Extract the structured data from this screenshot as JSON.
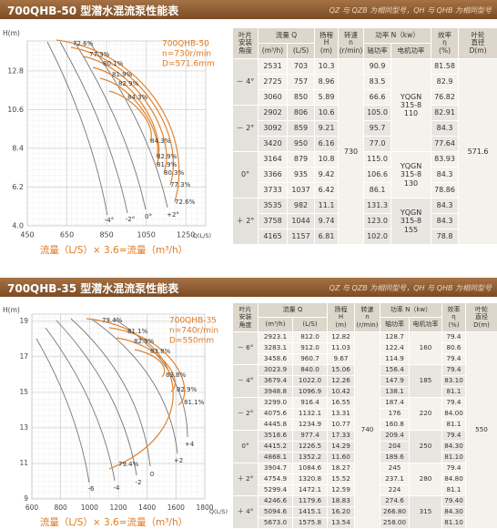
{
  "notice": "QZ 与 QZB 为相同型号，QH 与 QHB 为相同型号",
  "sections": [
    {
      "title": "700QHB-50 型潜水混流泵性能表",
      "chart": {
        "y_label": "H(m)",
        "x_label": "Q(L/S)",
        "ylim": [
          4,
          14.5
        ],
        "yticks": [
          {
            "value": 4,
            "label": "4.0"
          },
          6.2,
          8.4,
          10.6,
          12.8
        ],
        "xlim": [
          450,
          1350
        ],
        "xticks": [
          450,
          650,
          850,
          1050,
          1250
        ],
        "model": [
          "700QHB-50",
          "n=730r/min",
          "D=571.6mm"
        ],
        "efficiency_labels": [
          "72.6%",
          "77.3%",
          "80.1%",
          "81.9%",
          "82.9%",
          "84.3%",
          "84.3%",
          "82.9%",
          "81.9%",
          "80.3%",
          "77.3%",
          "72.6%"
        ],
        "angle_labels": [
          "-4°",
          "-2°",
          "0°",
          "+2°"
        ],
        "caption": "流量（L/S）× 3.6=流量（m³/h）"
      },
      "table": {
        "header": {
          "angle": [
            "叶片",
            "安装",
            "角度"
          ],
          "flow": "流量 Q",
          "flow_units": [
            "(m³/h)",
            "(L/S)"
          ],
          "head": [
            "扬程",
            "H",
            "(m)"
          ],
          "speed": [
            "转速",
            "n",
            "(r/min)"
          ],
          "power": "功率 N（kw）",
          "power_cols": [
            "轴功率",
            "电机功率"
          ],
          "efficiency": [
            "效率",
            "η",
            "(%)"
          ],
          "diameter": [
            "叶轮",
            "直径",
            "D(m)"
          ]
        },
        "speed": "730",
        "diameter": "571.6",
        "groups": [
          {
            "angle": "－ 4°",
            "motor": [
              "YQGN",
              "315-8",
              "110"
            ],
            "rows": [
              [
                "2531",
                "703",
                "10.3",
                "90.9",
                "81.58"
              ],
              [
                "2725",
                "757",
                "8.96",
                "83.5",
                "82.9"
              ],
              [
                "3060",
                "850",
                "5.89",
                "66.6",
                "76.82"
              ]
            ]
          },
          {
            "angle": "－ 2°",
            "rows": [
              [
                "2902",
                "806",
                "10.6",
                "105.0",
                "82.91"
              ],
              [
                "3092",
                "859",
                "9.21",
                "95.7",
                "84.3"
              ],
              [
                "3420",
                "950",
                "6.16",
                "77.0",
                "77.64"
              ]
            ]
          },
          {
            "angle": "0°",
            "motor": [
              "YQGN",
              "315-8",
              "130"
            ],
            "rows": [
              [
                "3164",
                "879",
                "10.8",
                "115.0",
                "83.93"
              ],
              [
                "3366",
                "935",
                "9.42",
                "106.6",
                "84.3"
              ],
              [
                "3733",
                "1037",
                "6.42",
                "86.1",
                "78.86"
              ]
            ]
          },
          {
            "angle": "＋ 2°",
            "motor": [
              "YQGN",
              "315-8",
              "155"
            ],
            "rows": [
              [
                "3535",
                "982",
                "11.1",
                "131.3",
                "84.3"
              ],
              [
                "3758",
                "1044",
                "9.74",
                "123.0",
                "84.3"
              ],
              [
                "4165",
                "1157",
                "6.81",
                "102.0",
                "78.8"
              ]
            ]
          }
        ]
      }
    },
    {
      "title": "700QHB-35 型潜水混流泵性能表",
      "chart": {
        "y_label": "H(m)",
        "x_label": "Q(L/S)",
        "ylim": [
          9,
          19.4
        ],
        "yticks": [
          9,
          11,
          13,
          15,
          17,
          19
        ],
        "xlim": [
          600,
          1800
        ],
        "xticks": [
          600,
          800,
          1000,
          1200,
          1400,
          1600,
          1800
        ],
        "model": [
          "700QHB-35",
          "n=740r/min",
          "D=550mm"
        ],
        "efficiency_labels": [
          "79.4%",
          "81.1%",
          "82.9%",
          "83.8%",
          "83.8%",
          "82.9%",
          "81.1%",
          "79.4%"
        ],
        "angle_labels": [
          "-6",
          "-4",
          "-2",
          "0",
          "+2",
          "+4"
        ],
        "caption": "流量（L/S）× 3.6=流量（m³/h）"
      },
      "table": {
        "header": {
          "angle": [
            "叶片",
            "安装",
            "角度"
          ],
          "flow": "流量 Q",
          "flow_units": [
            "(m³/h)",
            "(L/S)"
          ],
          "head": [
            "扬程",
            "H",
            "(m)"
          ],
          "speed": [
            "转速",
            "n",
            "(r/min)"
          ],
          "power": "功率 N（kw）",
          "power_cols": [
            "轴功率",
            "电机功率"
          ],
          "efficiency": [
            "效率",
            "η",
            "(%)"
          ],
          "diameter": [
            "叶轮",
            "直径",
            "D(m)"
          ]
        },
        "speed": "740",
        "diameter": "550",
        "groups": [
          {
            "angle": "－ 6°",
            "motor": [
              "160"
            ],
            "rows": [
              [
                "2923.1",
                "812.0",
                "12.82",
                "128.7",
                "79.4"
              ],
              [
                "3283.1",
                "912.0",
                "11.03",
                "122.4",
                "80.6"
              ],
              [
                "3458.6",
                "960.7",
                "9.67",
                "114.9",
                "79.4"
              ]
            ]
          },
          {
            "angle": "－ 4°",
            "motor": [
              "185"
            ],
            "rows": [
              [
                "3023.9",
                "840.0",
                "15.06",
                "156.4",
                "79.4"
              ],
              [
                "3679.4",
                "1022.0",
                "12.26",
                "147.9",
                "83.10"
              ],
              [
                "3948.8",
                "1096.9",
                "10.42",
                "138.1",
                "81.1"
              ]
            ]
          },
          {
            "angle": "－ 2°",
            "motor": [
              "220"
            ],
            "rows": [
              [
                "3299.0",
                "916.4",
                "16.55",
                "187.4",
                "79.4"
              ],
              [
                "4075.6",
                "1132.1",
                "13.31",
                "176",
                "84.00"
              ],
              [
                "4445.8",
                "1234.9",
                "10.77",
                "160.8",
                "81.1"
              ]
            ]
          },
          {
            "angle": "0°",
            "motor": [
              "250"
            ],
            "rows": [
              [
                "3518.6",
                "977.4",
                "17.33",
                "209.4",
                "79.4"
              ],
              [
                "4415.2",
                "1226.5",
                "14.29",
                "204",
                "84.30"
              ],
              [
                "4868.1",
                "1352.2",
                "11.60",
                "189.6",
                "81.10"
              ]
            ]
          },
          {
            "angle": "＋ 2°",
            "motor": [
              "280"
            ],
            "rows": [
              [
                "3904.7",
                "1084.6",
                "18.27",
                "245",
                "79.4"
              ],
              [
                "4754.9",
                "1320.8",
                "15.52",
                "237.1",
                "84.80"
              ],
              [
                "5299.4",
                "1472.1",
                "12.59",
                "224",
                "81.1"
              ]
            ]
          },
          {
            "angle": "＋ 4°",
            "motor": [
              "315"
            ],
            "rows": [
              [
                "4246.6",
                "1179.6",
                "18.83",
                "274.6",
                "79.40"
              ],
              [
                "5094.6",
                "1415.1",
                "16.20",
                "266.80",
                "84.30"
              ],
              [
                "5673.0",
                "1575.8",
                "13.54",
                "258.00",
                "81.10"
              ]
            ]
          }
        ]
      }
    }
  ]
}
